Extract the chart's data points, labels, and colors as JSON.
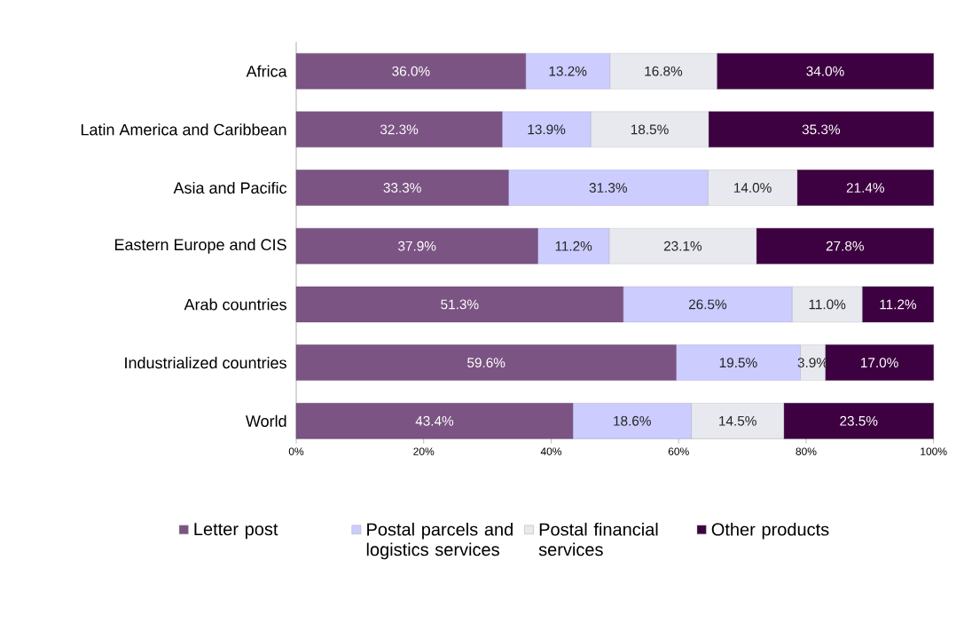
{
  "chart_data": {
    "type": "bar",
    "orientation": "horizontal",
    "stacked": true,
    "categories": [
      "Africa",
      "Latin America and Caribbean",
      "Asia and Pacific",
      "Eastern Europe and CIS",
      "Arab countries",
      "Industrialized countries",
      "World"
    ],
    "series": [
      {
        "name": "Letter post",
        "color": "#7b5483",
        "values": [
          36.0,
          32.3,
          33.3,
          37.9,
          51.3,
          59.6,
          43.4
        ],
        "value_labels": [
          "36.0%",
          "32.3%",
          "33.3%",
          "37.9%",
          "51.3%",
          "59.6%",
          "43.4%"
        ]
      },
      {
        "name": "Postal parcels and logistics services",
        "color": "#ccccff",
        "values": [
          13.2,
          13.9,
          31.3,
          11.2,
          26.5,
          19.5,
          18.6
        ],
        "value_labels": [
          "13.2%",
          "13.9%",
          "31.3%",
          "11.2%",
          "26.5%",
          "19.5%",
          "18.6%"
        ]
      },
      {
        "name": "Postal financial services",
        "color": "#e8e8ef",
        "values": [
          16.8,
          18.5,
          14.0,
          23.1,
          11.0,
          3.9,
          14.5
        ],
        "value_labels": [
          "16.8%",
          "18.5%",
          "14.0%",
          "23.1%",
          "11.0%",
          "3.9%",
          "14.5%"
        ]
      },
      {
        "name": "Other products",
        "color": "#3d0041",
        "values": [
          34.0,
          35.3,
          21.4,
          27.8,
          11.2,
          17.0,
          23.5
        ],
        "value_labels": [
          "34.0%",
          "35.3%",
          "21.4%",
          "27.8%",
          "11.2%",
          "17.0%",
          "23.5%"
        ]
      }
    ],
    "xlim": [
      0,
      100
    ],
    "xticks": [
      {
        "value": 0,
        "label": "0%"
      },
      {
        "value": 20,
        "label": "20%"
      },
      {
        "value": 40,
        "label": "40%"
      },
      {
        "value": 60,
        "label": "60%"
      },
      {
        "value": 80,
        "label": "80%"
      },
      {
        "value": 100,
        "label": "100%"
      }
    ],
    "legend": "bottom",
    "grid": false
  }
}
